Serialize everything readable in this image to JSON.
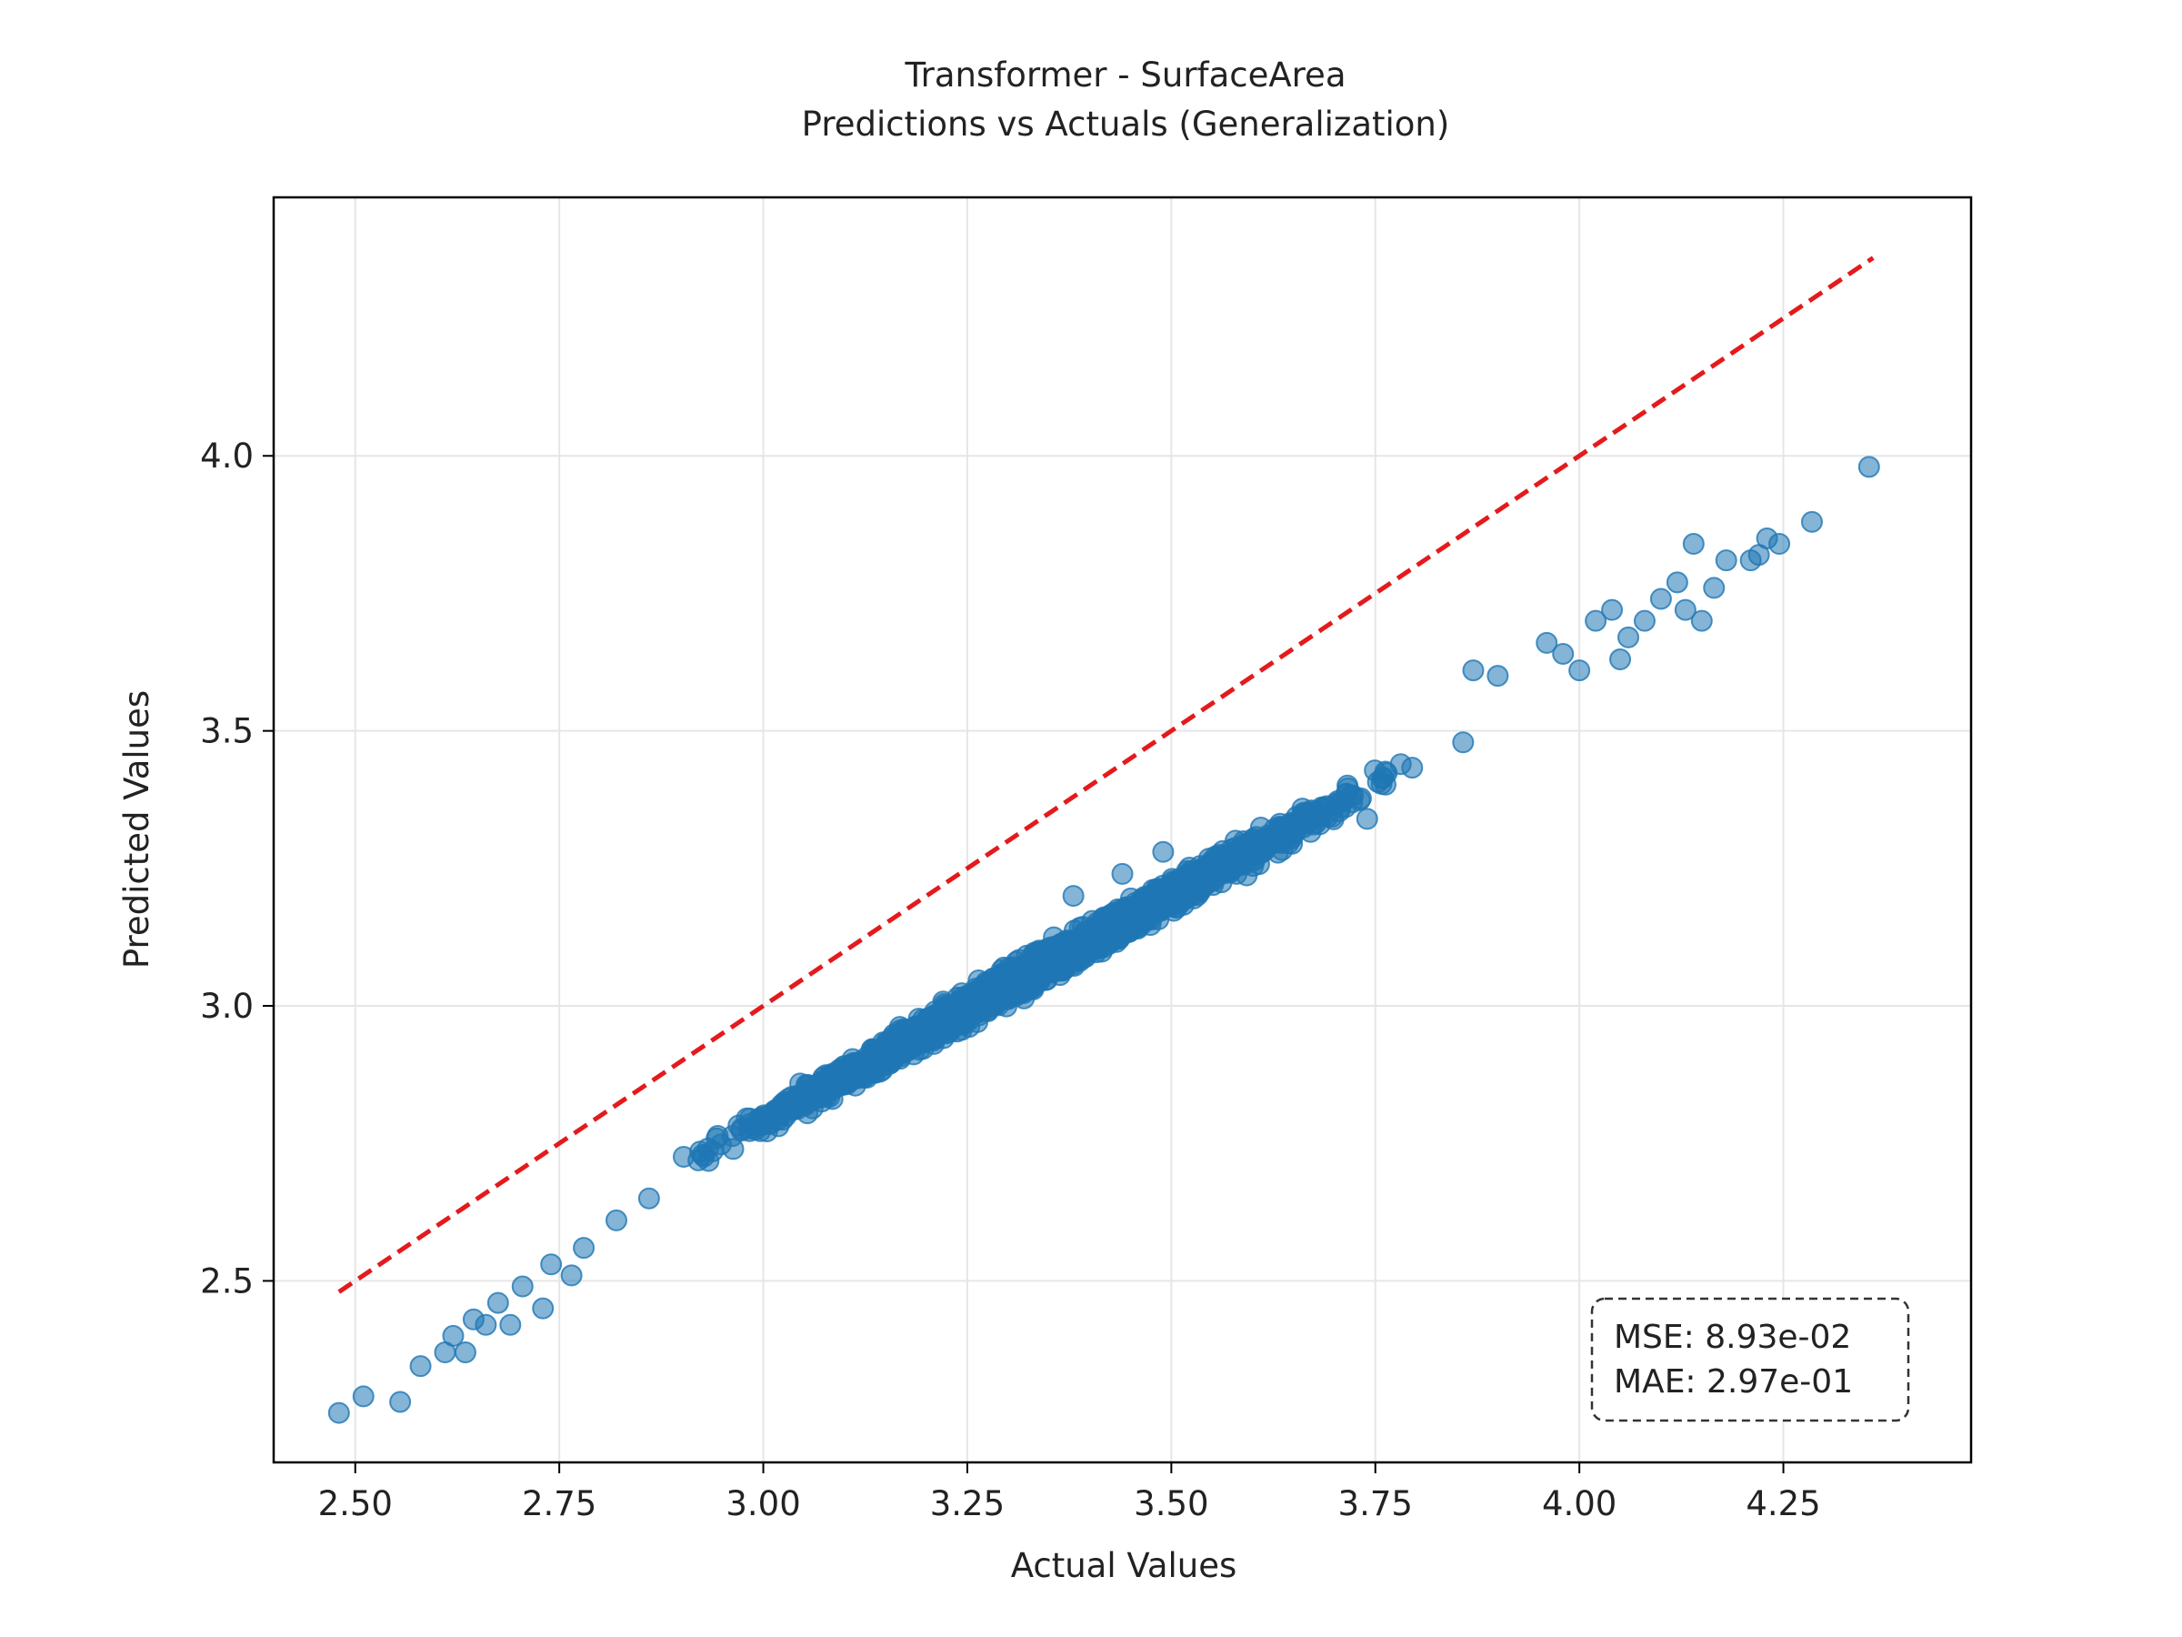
{
  "chart_data": {
    "type": "scatter",
    "title": "Transformer - SurfaceArea",
    "subtitle": "Predictions vs Actuals (Generalization)",
    "xlabel": "Actual Values",
    "ylabel": "Predicted Values",
    "xlim": [
      2.4,
      4.48
    ],
    "ylim": [
      2.17,
      4.47
    ],
    "xticks": [
      2.5,
      2.75,
      3.0,
      3.25,
      3.5,
      3.75,
      4.0,
      4.25
    ],
    "xtick_labels": [
      "2.50",
      "2.75",
      "3.00",
      "3.25",
      "3.50",
      "3.75",
      "4.00",
      "4.25"
    ],
    "yticks": [
      2.5,
      3.0,
      3.5,
      4.0
    ],
    "ytick_labels": [
      "2.5",
      "3.0",
      "3.5",
      "4.0"
    ],
    "grid": true,
    "point_color": "#1f77b4",
    "point_opacity": 0.55,
    "reference_line": {
      "color": "#e41a1c",
      "style": "dashed",
      "x": [
        2.48,
        4.36
      ],
      "y": [
        2.48,
        4.36
      ]
    },
    "stats_box": {
      "lines": [
        "MSE: 8.93e-02",
        "MAE: 2.97e-01"
      ],
      "placement": "bottom-right"
    },
    "points_explicit": [
      [
        2.48,
        2.26
      ],
      [
        2.51,
        2.29
      ],
      [
        2.555,
        2.28
      ],
      [
        2.58,
        2.345
      ],
      [
        2.61,
        2.37
      ],
      [
        2.62,
        2.4
      ],
      [
        2.635,
        2.37
      ],
      [
        2.645,
        2.43
      ],
      [
        2.66,
        2.42
      ],
      [
        2.675,
        2.46
      ],
      [
        2.69,
        2.42
      ],
      [
        2.705,
        2.49
      ],
      [
        2.73,
        2.45
      ],
      [
        2.74,
        2.53
      ],
      [
        2.765,
        2.51
      ],
      [
        2.78,
        2.56
      ],
      [
        2.82,
        2.61
      ],
      [
        2.86,
        2.65
      ],
      [
        3.31,
        3.08
      ],
      [
        3.38,
        3.2
      ],
      [
        3.44,
        3.24
      ],
      [
        3.49,
        3.28
      ],
      [
        3.74,
        3.34
      ],
      [
        3.87,
        3.61
      ],
      [
        3.9,
        3.6
      ],
      [
        3.96,
        3.66
      ],
      [
        3.98,
        3.64
      ],
      [
        4.0,
        3.61
      ],
      [
        4.02,
        3.7
      ],
      [
        4.04,
        3.72
      ],
      [
        4.05,
        3.63
      ],
      [
        4.06,
        3.67
      ],
      [
        4.08,
        3.7
      ],
      [
        4.1,
        3.74
      ],
      [
        4.12,
        3.77
      ],
      [
        4.13,
        3.72
      ],
      [
        4.14,
        3.84
      ],
      [
        4.15,
        3.7
      ],
      [
        4.165,
        3.76
      ],
      [
        4.18,
        3.81
      ],
      [
        4.21,
        3.81
      ],
      [
        4.22,
        3.82
      ],
      [
        4.23,
        3.85
      ],
      [
        4.245,
        3.84
      ],
      [
        4.285,
        3.88
      ],
      [
        4.355,
        3.98
      ]
    ],
    "cloud": {
      "n": 2600,
      "x_range": [
        2.76,
        3.95
      ],
      "fit": {
        "slope": 0.826,
        "intercept": 0.311
      },
      "scatter_sd": 0.022
    }
  }
}
